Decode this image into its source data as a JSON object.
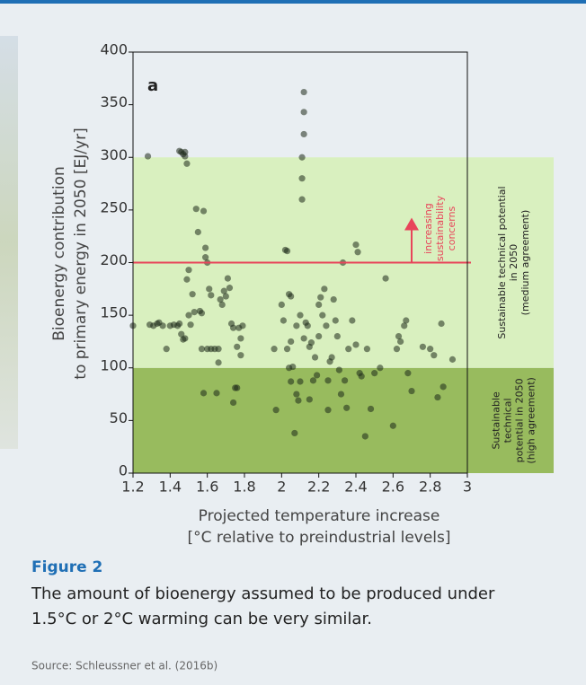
{
  "chart_data": {
    "type": "scatter",
    "panel_label": "a",
    "ylabel": [
      "Bioenergy contribution",
      "to primary energy in 2050 [EJ/yr]"
    ],
    "xlabel": [
      "Projected temperature increase",
      "[°C relative to preindustrial levels]"
    ],
    "xlim": [
      1.2,
      3
    ],
    "xticks": [
      1.2,
      1.4,
      1.6,
      1.8,
      2,
      2.2,
      2.4,
      2.6,
      2.8,
      3
    ],
    "ylim": [
      0,
      400
    ],
    "yticks": [
      0,
      50,
      100,
      150,
      200,
      250,
      300,
      350,
      400
    ],
    "color": "#1e2a1a",
    "bands": [
      {
        "from": 0,
        "to": 100,
        "color": "#98bb5e",
        "label": [
          "Sustainable",
          "technical",
          "potential in 2050",
          "(high agreement)"
        ]
      },
      {
        "from": 100,
        "to": 300,
        "color": "#d9f0bf",
        "label": [
          "Sustainable technical potential",
          "in 2050",
          "(medium agreement)"
        ]
      }
    ],
    "threshold": {
      "value": 200,
      "color": "#e8445a",
      "label": [
        "increasing",
        "sustainability",
        "concerns"
      ]
    },
    "x": [
      1.2,
      1.28,
      1.29,
      1.31,
      1.33,
      1.34,
      1.36,
      1.38,
      1.4,
      1.42,
      1.44,
      1.45,
      1.46,
      1.47,
      1.48,
      1.49,
      1.48,
      1.45,
      1.46,
      1.47,
      1.48,
      1.49,
      1.5,
      1.5,
      1.51,
      1.52,
      1.53,
      1.54,
      1.55,
      1.56,
      1.57,
      1.57,
      1.58,
      1.59,
      1.59,
      1.6,
      1.6,
      1.58,
      1.61,
      1.62,
      1.62,
      1.64,
      1.65,
      1.66,
      1.66,
      1.67,
      1.68,
      1.69,
      1.7,
      1.71,
      1.72,
      1.73,
      1.74,
      1.75,
      1.76,
      1.76,
      1.77,
      1.78,
      1.78,
      1.74,
      1.79,
      2.0,
      2.01,
      2.02,
      2.03,
      2.04,
      2.05,
      2.03,
      2.04,
      2.05,
      2.06,
      2.07,
      2.08,
      2.09,
      2.1,
      2.11,
      2.11,
      2.11,
      2.12,
      2.12,
      2.12,
      2.1,
      2.12,
      2.13,
      2.14,
      2.15,
      2.16,
      2.17,
      2.18,
      2.19,
      2.2,
      2.21,
      2.22,
      2.23,
      2.24,
      2.25,
      2.26,
      2.27,
      2.28,
      2.29,
      2.3,
      2.31,
      2.32,
      2.33,
      2.34,
      2.35,
      2.36,
      2.38,
      2.4,
      2.4,
      2.41,
      2.42,
      2.43,
      2.45,
      2.46,
      2.48,
      2.5,
      2.53,
      2.56,
      2.6,
      2.62,
      2.63,
      2.64,
      2.66,
      2.67,
      2.68,
      2.7,
      2.76,
      2.8,
      2.82,
      2.84,
      2.86,
      2.87,
      2.92,
      1.96,
      1.97,
      2.05,
      2.08,
      2.15,
      2.2,
      2.25
    ],
    "values": [
      140,
      301,
      141,
      140,
      142,
      143,
      140,
      118,
      140,
      141,
      140,
      306,
      305,
      303,
      301,
      294,
      305,
      142,
      132,
      127,
      128,
      184,
      193,
      150,
      141,
      170,
      153,
      251,
      229,
      154,
      152,
      118,
      249,
      214,
      205,
      200,
      118,
      76,
      175,
      169,
      118,
      118,
      76,
      118,
      105,
      165,
      160,
      173,
      168,
      185,
      176,
      142,
      138,
      81,
      81,
      120,
      138,
      128,
      112,
      67,
      140,
      160,
      145,
      212,
      211,
      170,
      168,
      118,
      100,
      87,
      101,
      38,
      75,
      69,
      87,
      260,
      280,
      300,
      322,
      343,
      362,
      150,
      128,
      143,
      140,
      120,
      124,
      88,
      110,
      93,
      160,
      167,
      150,
      175,
      140,
      88,
      106,
      110,
      165,
      145,
      130,
      98,
      75,
      200,
      88,
      62,
      118,
      145,
      122,
      217,
      210,
      95,
      92,
      35,
      118,
      61,
      95,
      100,
      185,
      45,
      118,
      130,
      125,
      140,
      145,
      95,
      78,
      120,
      118,
      112,
      72,
      142,
      82,
      108,
      118,
      60,
      125,
      140,
      70,
      130,
      60
    ]
  },
  "figure_label": "Figure 2",
  "caption": [
    "The amount of bioenergy assumed to be produced under",
    "1.5°C or 2°C warming can be very similar."
  ],
  "source": "Source: Schleussner et al. (2016b)"
}
